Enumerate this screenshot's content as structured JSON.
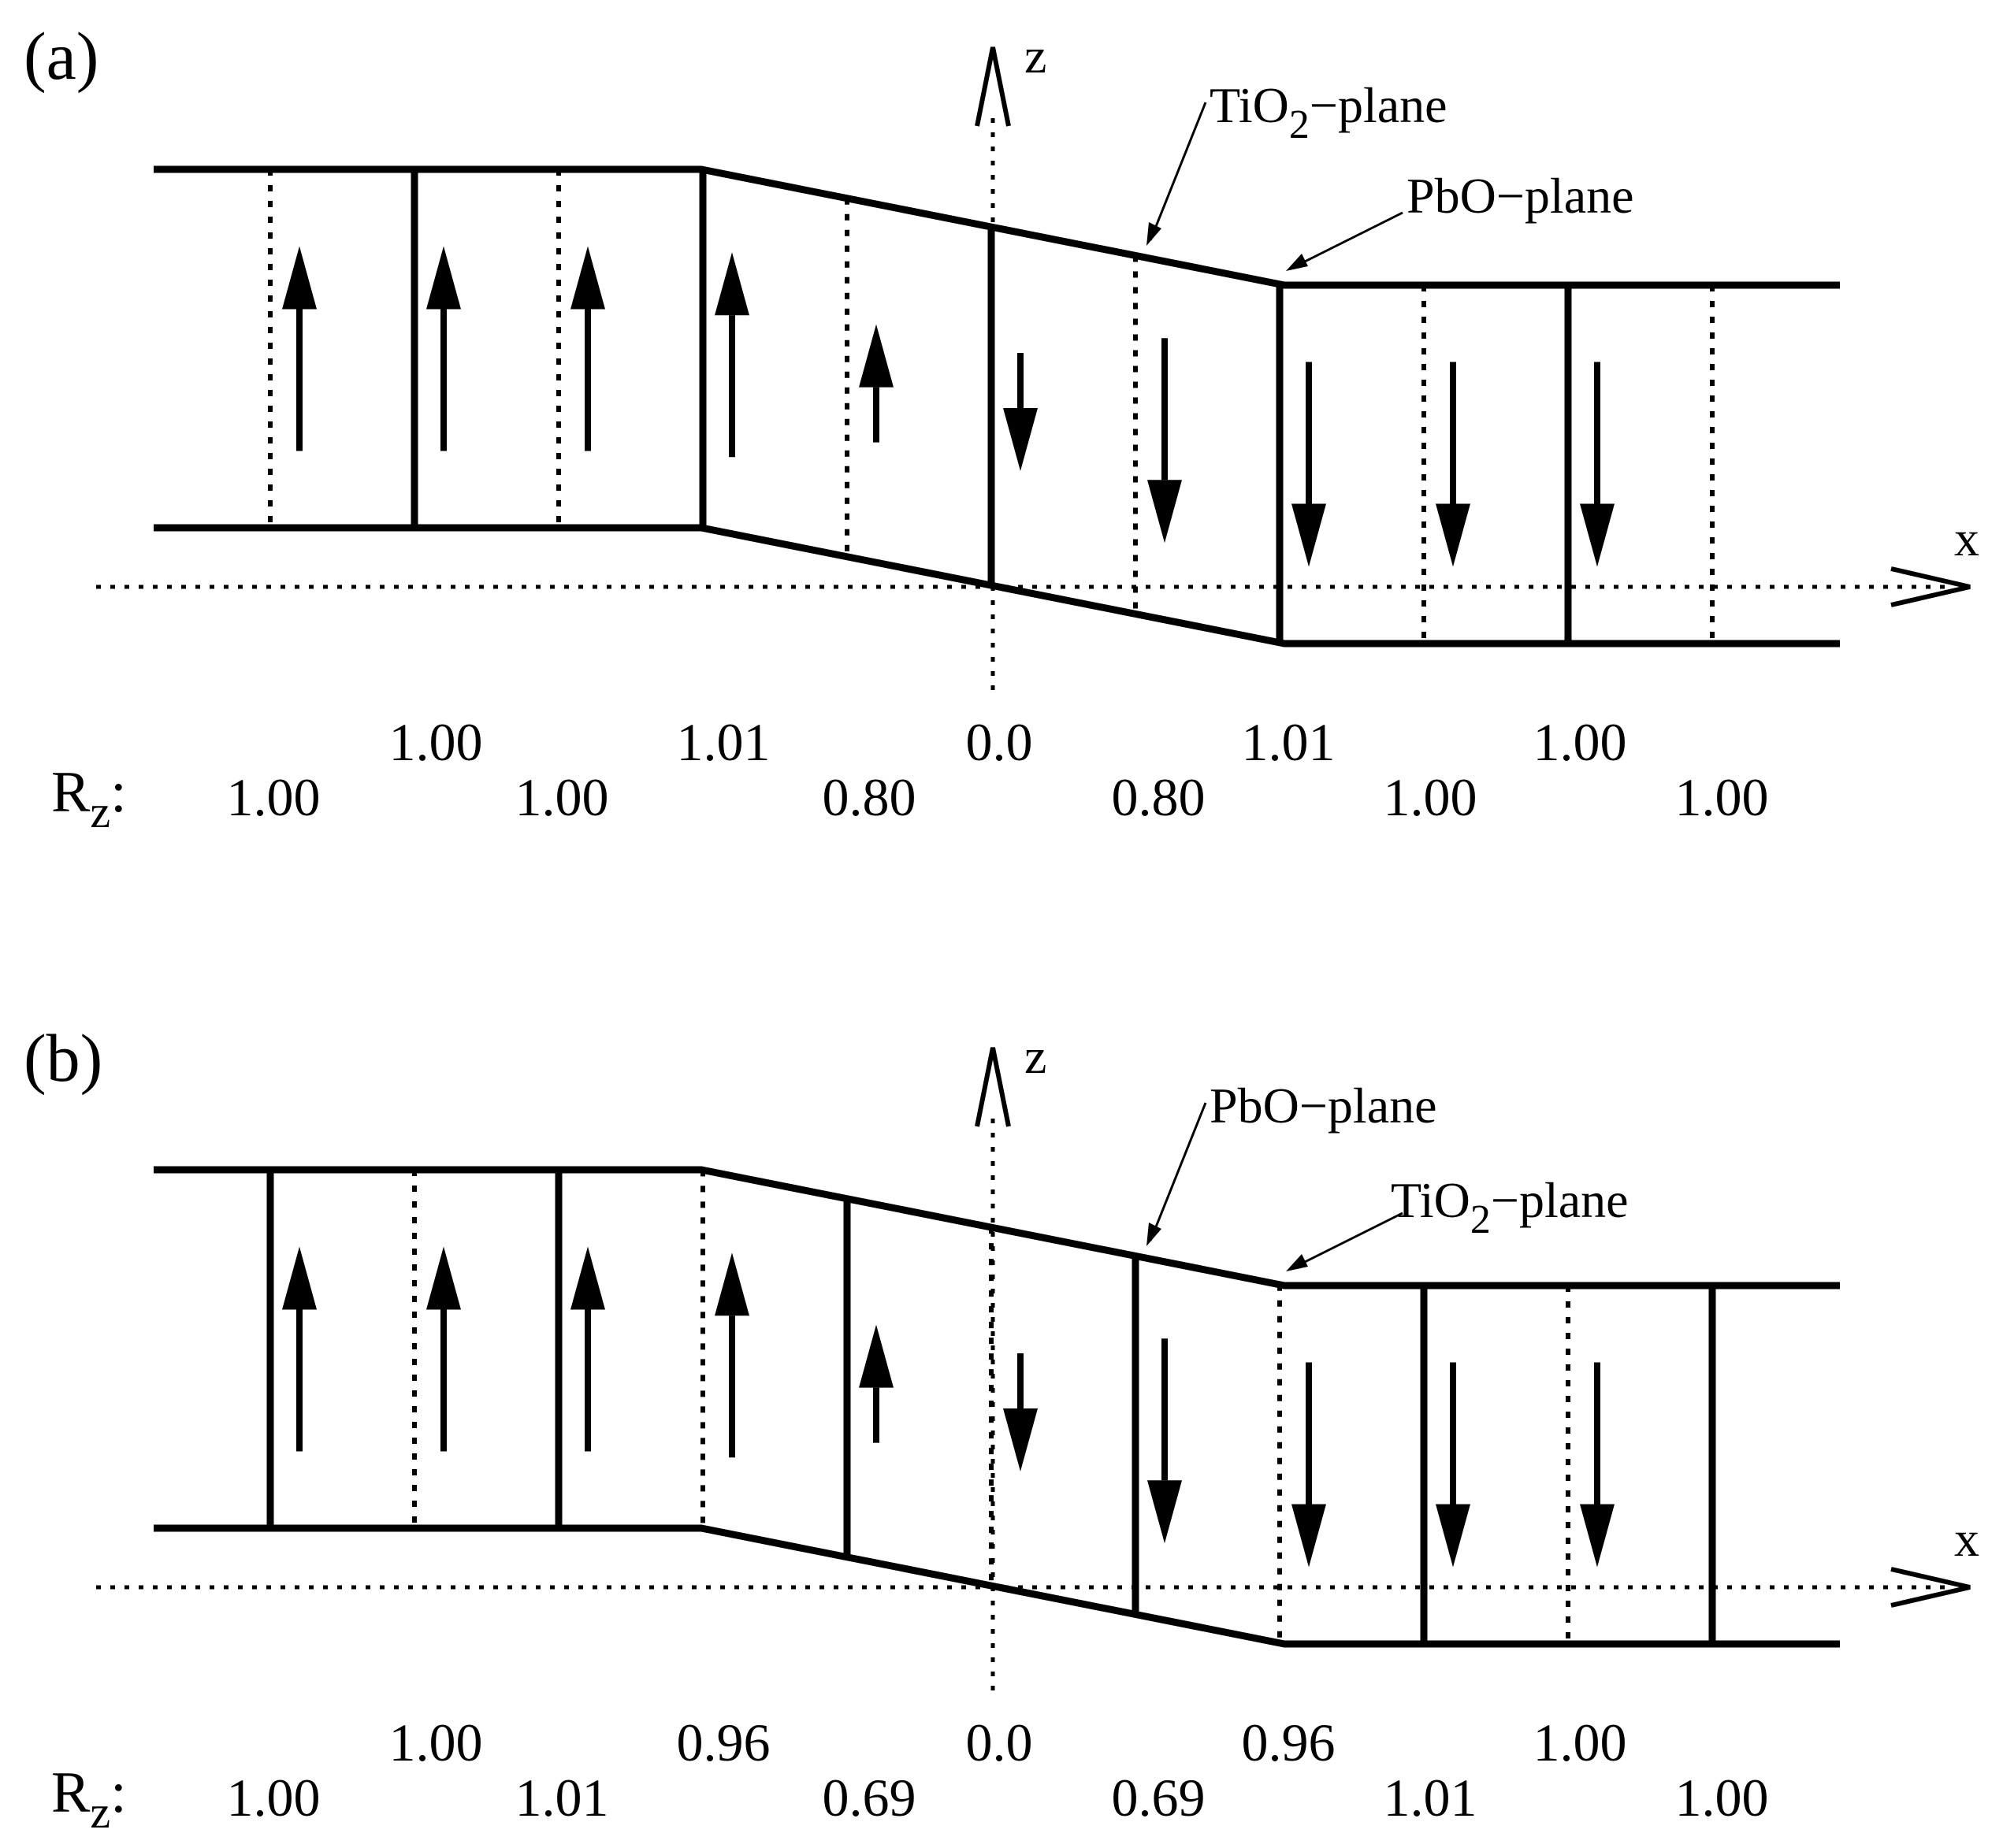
{
  "panels": [
    {
      "id": "a",
      "label": "(a)",
      "axis_z": "z",
      "axis_x": "x",
      "top_annotation": {
        "main": "TiO",
        "sub": "2",
        "rest": "−plane"
      },
      "bottom_annotation": {
        "main": "PbO−plane",
        "sub": "",
        "rest": ""
      },
      "rz_label": {
        "main": "R",
        "sub": "z",
        "colon": ":"
      },
      "rz_upper": [
        "1.00",
        "1.01",
        "0.0",
        "1.01",
        "1.00"
      ],
      "rz_lower": [
        "1.00",
        "1.00",
        "0.80",
        "0.80",
        "1.00",
        "1.00"
      ],
      "line_style": [
        "dotted",
        "solid",
        "dotted",
        "solid",
        "dotted",
        "solid",
        "dotted",
        "solid",
        "dotted",
        "solid",
        "dotted"
      ],
      "arrow_dir": [
        "up",
        "up",
        "up",
        "up",
        "up",
        "down",
        "down",
        "down",
        "down",
        "down"
      ]
    },
    {
      "id": "b",
      "label": "(b)",
      "axis_z": "z",
      "axis_x": "x",
      "top_annotation": {
        "main": "PbO−plane",
        "sub": "",
        "rest": ""
      },
      "bottom_annotation": {
        "main": "TiO",
        "sub": "2",
        "rest": "−plane"
      },
      "rz_label": {
        "main": "R",
        "sub": "z",
        "colon": ":"
      },
      "rz_upper": [
        "1.00",
        "0.96",
        "0.0",
        "0.96",
        "1.00"
      ],
      "rz_lower": [
        "1.00",
        "1.01",
        "0.69",
        "0.69",
        "1.01",
        "1.00"
      ],
      "line_style": [
        "solid",
        "dotted",
        "solid",
        "dotted",
        "solid",
        "dotted",
        "solid",
        "dotted",
        "solid",
        "dotted",
        "solid"
      ],
      "arrow_dir": [
        "up",
        "up",
        "up",
        "up",
        "up",
        "down",
        "down",
        "down",
        "down",
        "down"
      ]
    }
  ]
}
